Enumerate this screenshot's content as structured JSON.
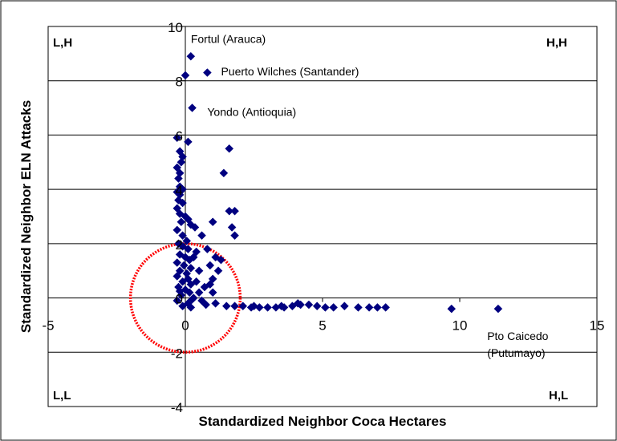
{
  "chart_data": {
    "type": "scatter",
    "xlabel": "Standardized Neighbor Coca Hectares",
    "ylabel": "Standardized Neighbor ELN Attacks",
    "xlim": [
      -5,
      15
    ],
    "ylim": [
      -4,
      10
    ],
    "x_ticks": [
      "-5",
      "0",
      "5",
      "10",
      "15"
    ],
    "y_ticks": [
      "-4",
      "-2",
      "0",
      "2",
      "4",
      "6",
      "8",
      "10"
    ],
    "grid": "horizontal",
    "marker": "diamond",
    "colors": {
      "points": "#000080",
      "circle": "#ff0000",
      "grid": "#000000"
    },
    "quadrant_labels": {
      "top_left": "L,H",
      "top_right": "H,H",
      "bottom_left": "L,L",
      "bottom_right": "H,L"
    },
    "annotations": [
      {
        "text": "Fortul (Arauca)",
        "x": 0.2,
        "y": 9.4
      },
      {
        "text": "Puerto Wilches (Santander)",
        "x": 1.3,
        "y": 8.2
      },
      {
        "text": "Yondo (Antioquia)",
        "x": 0.8,
        "y": 6.7
      },
      {
        "lines": [
          "Pto Caicedo",
          "(Putumayo)"
        ],
        "x": 11.0,
        "y": -1.55
      }
    ],
    "circle": {
      "center": [
        0,
        0
      ],
      "radius": 2
    },
    "points": [
      [
        0.2,
        8.9
      ],
      [
        0.8,
        8.3
      ],
      [
        0.0,
        8.2
      ],
      [
        0.25,
        7.0
      ],
      [
        -0.3,
        5.9
      ],
      [
        0.1,
        5.75
      ],
      [
        -0.2,
        5.4
      ],
      [
        -0.1,
        5.2
      ],
      [
        -0.15,
        5.0
      ],
      [
        -0.3,
        4.8
      ],
      [
        -0.2,
        4.6
      ],
      [
        -0.25,
        4.4
      ],
      [
        -0.2,
        4.1
      ],
      [
        -0.1,
        4.0
      ],
      [
        -0.3,
        3.9
      ],
      [
        -0.2,
        3.8
      ],
      [
        -0.25,
        3.6
      ],
      [
        -0.1,
        3.5
      ],
      [
        -0.3,
        3.3
      ],
      [
        -0.2,
        3.1
      ],
      [
        0.0,
        3.0
      ],
      [
        0.1,
        2.9
      ],
      [
        -0.15,
        2.8
      ],
      [
        0.2,
        2.7
      ],
      [
        -0.3,
        2.5
      ],
      [
        -0.1,
        2.3
      ],
      [
        0.05,
        2.1
      ],
      [
        -0.25,
        2.0
      ],
      [
        -0.1,
        1.9
      ],
      [
        0.1,
        1.8
      ],
      [
        -0.2,
        1.6
      ],
      [
        0.0,
        1.5
      ],
      [
        0.15,
        1.4
      ],
      [
        -0.3,
        1.3
      ],
      [
        -0.05,
        1.2
      ],
      [
        0.2,
        1.1
      ],
      [
        -0.2,
        1.0
      ],
      [
        0.05,
        0.9
      ],
      [
        -0.3,
        0.8
      ],
      [
        0.1,
        0.7
      ],
      [
        -0.1,
        0.6
      ],
      [
        0.2,
        0.5
      ],
      [
        -0.25,
        0.4
      ],
      [
        0.0,
        0.3
      ],
      [
        0.15,
        0.2
      ],
      [
        -0.15,
        0.1
      ],
      [
        0.3,
        0.0
      ],
      [
        -0.3,
        -0.1
      ],
      [
        0.1,
        -0.2
      ],
      [
        -0.1,
        -0.3
      ],
      [
        0.2,
        -0.35
      ],
      [
        -0.2,
        0.25
      ],
      [
        0.4,
        0.6
      ],
      [
        0.5,
        1.0
      ],
      [
        0.4,
        1.7
      ],
      [
        0.6,
        2.3
      ],
      [
        0.8,
        1.8
      ],
      [
        0.9,
        1.2
      ],
      [
        1.0,
        0.7
      ],
      [
        0.7,
        0.4
      ],
      [
        0.6,
        -0.1
      ],
      [
        0.3,
        1.5
      ],
      [
        0.5,
        0.2
      ],
      [
        0.35,
        2.6
      ],
      [
        0.25,
        -0.05
      ],
      [
        1.1,
        1.5
      ],
      [
        1.3,
        1.4
      ],
      [
        1.2,
        1.0
      ],
      [
        0.9,
        0.5
      ],
      [
        1.0,
        0.2
      ],
      [
        1.1,
        -0.2
      ],
      [
        0.75,
        -0.25
      ],
      [
        1.4,
        4.6
      ],
      [
        1.6,
        5.5
      ],
      [
        1.6,
        3.2
      ],
      [
        1.8,
        3.2
      ],
      [
        1.7,
        2.6
      ],
      [
        1.8,
        2.3
      ],
      [
        1.0,
        2.8
      ],
      [
        1.5,
        -0.3
      ],
      [
        1.8,
        -0.3
      ],
      [
        2.1,
        -0.3
      ],
      [
        2.4,
        -0.35
      ],
      [
        2.7,
        -0.35
      ],
      [
        3.0,
        -0.35
      ],
      [
        3.3,
        -0.35
      ],
      [
        3.6,
        -0.35
      ],
      [
        3.9,
        -0.3
      ],
      [
        4.2,
        -0.25
      ],
      [
        4.5,
        -0.25
      ],
      [
        4.8,
        -0.3
      ],
      [
        5.1,
        -0.35
      ],
      [
        5.4,
        -0.35
      ],
      [
        5.8,
        -0.3
      ],
      [
        6.3,
        -0.35
      ],
      [
        6.7,
        -0.35
      ],
      [
        7.0,
        -0.35
      ],
      [
        7.3,
        -0.35
      ],
      [
        9.7,
        -0.4
      ],
      [
        11.4,
        -0.4
      ],
      [
        2.5,
        -0.3
      ],
      [
        3.5,
        -0.3
      ],
      [
        4.1,
        -0.2
      ]
    ]
  }
}
